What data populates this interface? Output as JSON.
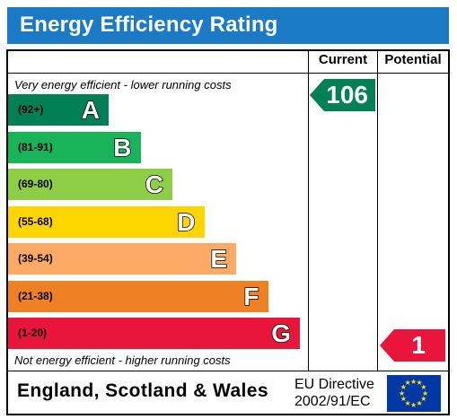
{
  "title": "Energy Efficiency Rating",
  "columns": {
    "current": "Current",
    "potential": "Potential"
  },
  "top_caption": "Very energy efficient - lower running costs",
  "bottom_caption": "Not energy efficient - higher running costs",
  "bands": [
    {
      "range": "(92+)",
      "letter": "A",
      "color": "#008054"
    },
    {
      "range": "(81-91)",
      "letter": "B",
      "color": "#19b459"
    },
    {
      "range": "(69-80)",
      "letter": "C",
      "color": "#8dce46"
    },
    {
      "range": "(55-68)",
      "letter": "D",
      "color": "#ffd500"
    },
    {
      "range": "(39-54)",
      "letter": "E",
      "color": "#fcaa65"
    },
    {
      "range": "(21-38)",
      "letter": "F",
      "color": "#ef8023"
    },
    {
      "range": "(1-20)",
      "letter": "G",
      "color": "#e9153b"
    }
  ],
  "current_rating": {
    "value": "106",
    "band": "A",
    "color": "#008054"
  },
  "potential_rating": {
    "value": "1",
    "band": "G",
    "color": "#e9153b"
  },
  "footer": {
    "region": "England, Scotland & Wales",
    "directive_line1": "EU Directive",
    "directive_line2": "2002/91/EC",
    "flag_icon": "eu-flag-icon"
  }
}
